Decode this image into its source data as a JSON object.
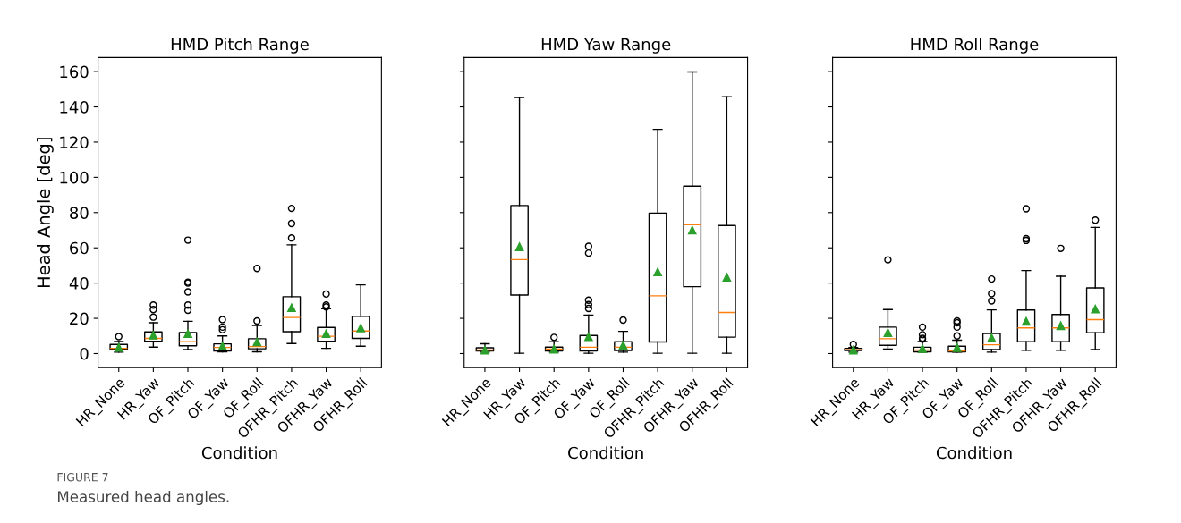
{
  "chart_data": [
    {
      "type": "box",
      "title": "HMD Pitch Range",
      "xlabel": "Condition",
      "ylabel": "Head Angle [deg]",
      "categories": [
        "HR_None",
        "HR_Yaw",
        "OF_Pitch",
        "OF_Yaw",
        "OF_Roll",
        "OFHR_Pitch",
        "OFHR_Yaw",
        "OFHR_Roll"
      ],
      "ylim": [
        -8,
        168
      ],
      "yticks": [
        0,
        20,
        40,
        60,
        80,
        100,
        120,
        140,
        160
      ],
      "boxes": [
        {
          "low": 0.8,
          "q1": 2.5,
          "median": 3,
          "q3": 5.2,
          "high": 6.9,
          "mean": 3.5,
          "outliers": [
            9.6
          ]
        },
        {
          "low": 3.7,
          "q1": 7,
          "median": 8.6,
          "q3": 12.3,
          "high": 17.5,
          "mean": 10.4,
          "outliers": [
            20.7,
            25,
            27.5
          ]
        },
        {
          "low": 2.3,
          "q1": 4.4,
          "median": 6.7,
          "q3": 12,
          "high": 18.3,
          "mean": 11.3,
          "outliers": [
            24.6,
            27.5,
            35,
            40,
            40.5,
            64.4
          ]
        },
        {
          "low": 1,
          "q1": 1.5,
          "median": 3.5,
          "q3": 5.5,
          "high": 10,
          "mean": 4.2,
          "outliers": [
            13.5,
            15,
            19.3
          ]
        },
        {
          "low": 1,
          "q1": 2.7,
          "median": 4,
          "q3": 8.4,
          "high": 16,
          "mean": 6.6,
          "outliers": [
            18.5,
            48.3
          ]
        },
        {
          "low": 5.7,
          "q1": 12.4,
          "median": 20.5,
          "q3": 32.3,
          "high": 61.7,
          "mean": 26,
          "outliers": [
            65.6,
            73.8,
            82.4
          ]
        },
        {
          "low": 3,
          "q1": 7,
          "median": 9.8,
          "q3": 14.8,
          "high": 25.4,
          "mean": 11.3,
          "outliers": [
            26.5,
            27.5,
            33.8
          ]
        },
        {
          "low": 4.2,
          "q1": 8.6,
          "median": 12.8,
          "q3": 21.2,
          "high": 39,
          "mean": 14.5
        }
      ],
      "annotations": [
        "FIGURE 7",
        "Measured head angles."
      ]
    },
    {
      "type": "box",
      "title": "HMD Yaw Range",
      "xlabel": "Condition",
      "categories": [
        "HR_None",
        "HR_Yaw",
        "OF_Pitch",
        "OF_Yaw",
        "OF_Roll",
        "OFHR_Pitch",
        "OFHR_Yaw",
        "OFHR_Roll"
      ],
      "ylim": [
        -8,
        168
      ],
      "yticks": [
        0,
        20,
        40,
        60,
        80,
        100,
        120,
        140,
        160
      ],
      "tick_labels": "x",
      "boxes": [
        {
          "low": 0.8,
          "q1": 1.5,
          "median": 2,
          "q3": 3.3,
          "high": 5.6,
          "mean": 2
        },
        {
          "low": 0.2,
          "q1": 33.2,
          "median": 53.3,
          "q3": 84,
          "high": 145.3,
          "mean": 60.6
        },
        {
          "low": 0.8,
          "q1": 1.5,
          "median": 2.5,
          "q3": 3.7,
          "high": 6.7,
          "mean": 2.5,
          "outliers": [
            9.2
          ]
        },
        {
          "low": 0.2,
          "q1": 1.5,
          "median": 3.6,
          "q3": 10.3,
          "high": 21.9,
          "mean": 9.5,
          "outliers": [
            25.6,
            27.8,
            30.3,
            57,
            60.9
          ]
        },
        {
          "low": 0.8,
          "q1": 1.8,
          "median": 3.6,
          "q3": 6.7,
          "high": 12.6,
          "mean": 4.7,
          "outliers": [
            19
          ]
        },
        {
          "low": 0.2,
          "q1": 6.6,
          "median": 32.8,
          "q3": 79.7,
          "high": 127.3,
          "mean": 46.3
        },
        {
          "low": 0.2,
          "q1": 38,
          "median": 73.2,
          "q3": 95,
          "high": 159.8,
          "mean": 70
        },
        {
          "low": 0.2,
          "q1": 9.3,
          "median": 23.3,
          "q3": 72.7,
          "high": 145.7,
          "mean": 43.3
        }
      ]
    },
    {
      "type": "box",
      "title": "HMD Roll Range",
      "xlabel": "Condition",
      "categories": [
        "HR_None",
        "HR_Yaw",
        "OF_Pitch",
        "OF_Yaw",
        "OF_Roll",
        "OFHR_Pitch",
        "OFHR_Yaw",
        "OFHR_Roll"
      ],
      "ylim": [
        -8,
        168
      ],
      "yticks": [
        0,
        20,
        40,
        60,
        80,
        100,
        120,
        140,
        160
      ],
      "tick_labels": "x",
      "boxes": [
        {
          "low": 0.8,
          "q1": 1.8,
          "median": 2.2,
          "q3": 3,
          "high": 3.5,
          "mean": 2,
          "outliers": [
            5.2
          ]
        },
        {
          "low": 2.5,
          "q1": 4.7,
          "median": 8.4,
          "q3": 15,
          "high": 25,
          "mean": 11.9,
          "outliers": [
            53.2
          ]
        },
        {
          "low": 0.8,
          "q1": 1,
          "median": 2,
          "q3": 3.6,
          "high": 6.9,
          "mean": 2.8,
          "outliers": [
            8.2,
            8.7,
            10.7,
            15
          ]
        },
        {
          "low": 0.8,
          "q1": 1,
          "median": 1.5,
          "q3": 4.2,
          "high": 7.6,
          "mean": 3.4,
          "outliers": [
            10,
            15,
            17.5,
            18.5
          ]
        },
        {
          "low": 0.8,
          "q1": 2.3,
          "median": 5,
          "q3": 11.4,
          "high": 24.8,
          "mean": 8.9,
          "outliers": [
            29.9,
            34,
            42.3
          ]
        },
        {
          "low": 1.9,
          "q1": 6.7,
          "median": 14.6,
          "q3": 24.7,
          "high": 47.1,
          "mean": 18.3,
          "outliers": [
            64.2,
            65.2,
            82.2
          ]
        },
        {
          "low": 1.9,
          "q1": 6.7,
          "median": 14.6,
          "q3": 22.2,
          "high": 43.9,
          "mean": 15.8,
          "outliers": [
            59.7
          ]
        },
        {
          "low": 2.3,
          "q1": 11.8,
          "median": 19.3,
          "q3": 37.3,
          "high": 71.6,
          "mean": 25.3,
          "outliers": [
            75.7
          ]
        }
      ]
    }
  ]
}
